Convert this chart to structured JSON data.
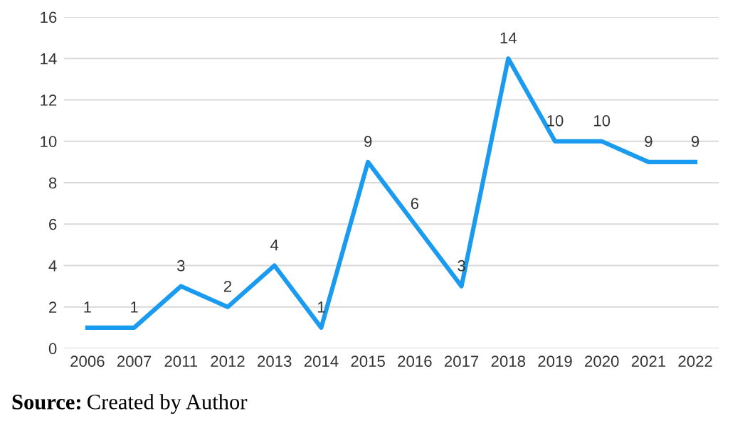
{
  "chart_data": {
    "type": "line",
    "categories": [
      "2006",
      "2007",
      "2011",
      "2012",
      "2013",
      "2014",
      "2015",
      "2016",
      "2017",
      "2018",
      "2019",
      "2020",
      "2021",
      "2022"
    ],
    "values": [
      1,
      1,
      3,
      2,
      4,
      1,
      9,
      6,
      3,
      14,
      10,
      10,
      9,
      9
    ],
    "color": "#1a9bf0",
    "ylim": [
      0,
      16
    ],
    "yticks": [
      0,
      2,
      4,
      6,
      8,
      10,
      12,
      14,
      16
    ],
    "grid": "y",
    "data_labels": true,
    "marker": "none",
    "line_style": "solid",
    "annotations": [
      "Source: Created by Author"
    ]
  }
}
